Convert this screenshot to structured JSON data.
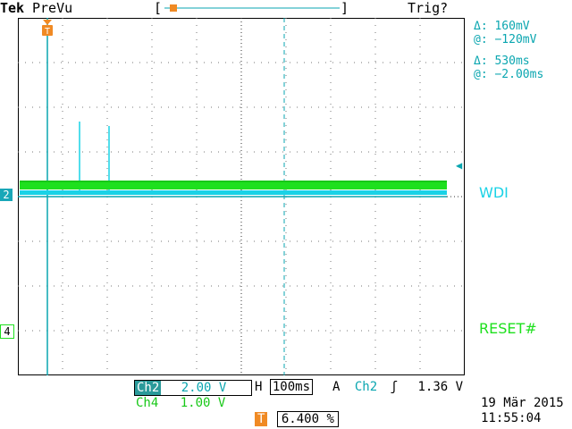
{
  "header": {
    "brand": "Tek",
    "mode": "PreVu",
    "trigger_status": "Trig?"
  },
  "cursors": {
    "voltage_delta": "Δ:   160mV",
    "voltage_at": "@:  −120mV",
    "time_delta": "Δ:   530ms",
    "time_at": "@:  −2.00ms"
  },
  "channels": {
    "ch2_marker": "2",
    "ch4_marker": "4",
    "ch2_label": "WDI",
    "ch4_label": "RESET#"
  },
  "status": {
    "ch2_name": "Ch2",
    "ch2_scale": "2.00 V",
    "ch4_name": "Ch4",
    "ch4_scale": "1.00 V",
    "horizontal_prefix": "H",
    "horizontal_scale": "100ms",
    "trigger_prefix": "A",
    "trigger_source": "Ch2",
    "trigger_slope": "ʃ",
    "trigger_level": "1.36 V",
    "trigger_marker": "T",
    "trigger_position": "6.400 %"
  },
  "datetime": {
    "date": "19 Mär  2015",
    "time": "11:55:04"
  },
  "colors": {
    "ch2": "#19d2e6",
    "ch4": "#1ee01e",
    "cursor": "#0aa6b0",
    "trigger": "#f08a24"
  }
}
